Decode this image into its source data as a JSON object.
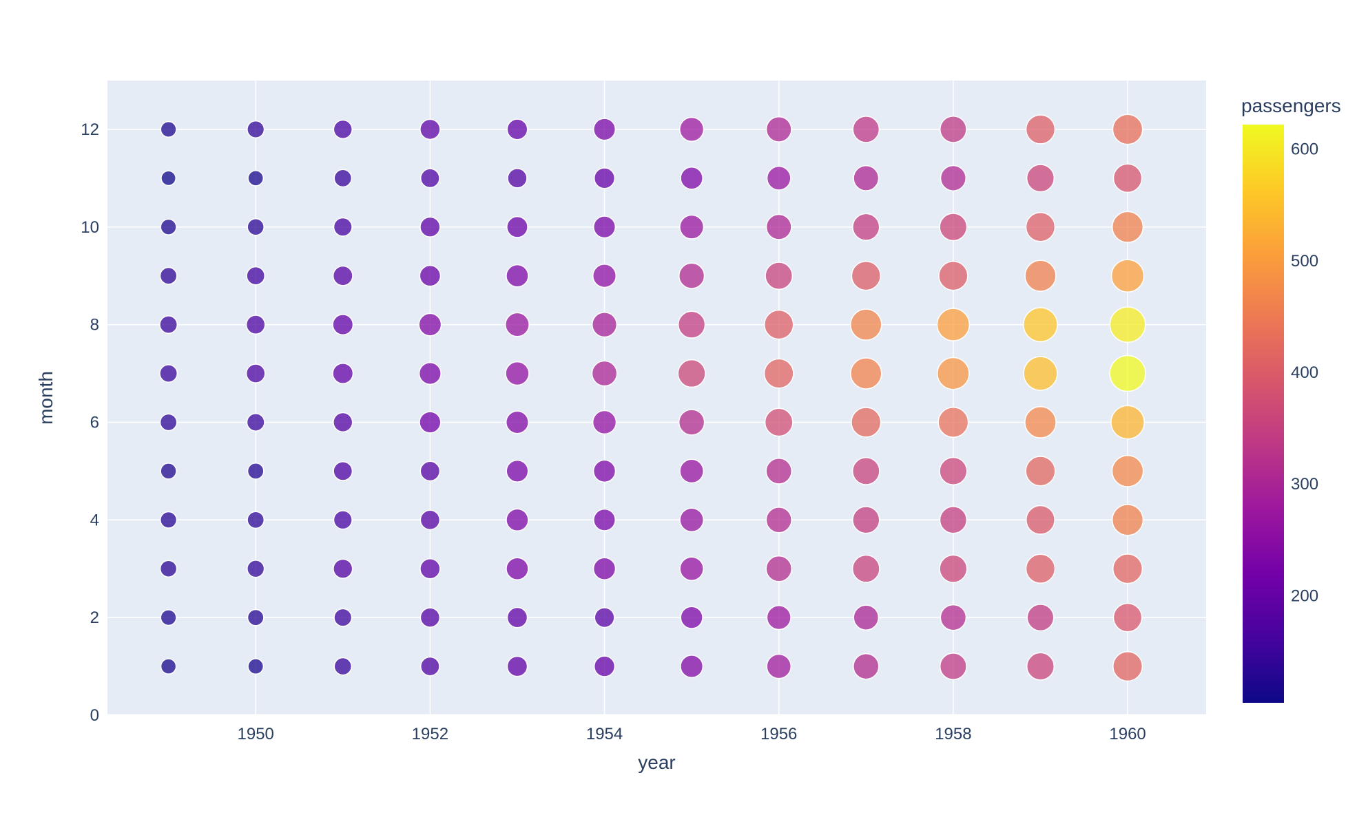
{
  "chart_data": {
    "type": "scatter",
    "subtype": "bubble",
    "xlabel": "year",
    "ylabel": "month",
    "colorbar_title": "passengers",
    "xlim": [
      1948.3,
      1960.9
    ],
    "ylim": [
      0,
      13
    ],
    "x_ticks": [
      1950,
      1952,
      1954,
      1956,
      1958,
      1960
    ],
    "y_ticks": [
      0,
      2,
      4,
      6,
      8,
      10,
      12
    ],
    "colorbar_ticks": [
      200,
      300,
      400,
      500,
      600
    ],
    "color_range": [
      104,
      622
    ],
    "colorscale": [
      "#0d0887",
      "#46039f",
      "#7201a8",
      "#9c179e",
      "#bd3786",
      "#d8576b",
      "#ed7953",
      "#fb9f3a",
      "#fdca26",
      "#f0f921"
    ],
    "plot_bgcolor": "#e5ecf6",
    "grid": true,
    "years": [
      1949,
      1950,
      1951,
      1952,
      1953,
      1954,
      1955,
      1956,
      1957,
      1958,
      1959,
      1960
    ],
    "months": [
      1,
      2,
      3,
      4,
      5,
      6,
      7,
      8,
      9,
      10,
      11,
      12
    ],
    "passengers": [
      [
        112,
        118,
        132,
        129,
        121,
        135,
        148,
        148,
        136,
        119,
        104,
        118
      ],
      [
        115,
        126,
        141,
        135,
        125,
        149,
        170,
        170,
        158,
        133,
        114,
        140
      ],
      [
        145,
        150,
        178,
        163,
        172,
        178,
        199,
        199,
        184,
        162,
        146,
        166
      ],
      [
        171,
        180,
        193,
        181,
        183,
        218,
        230,
        242,
        209,
        191,
        172,
        194
      ],
      [
        196,
        196,
        236,
        235,
        229,
        243,
        264,
        272,
        237,
        211,
        180,
        201
      ],
      [
        204,
        188,
        235,
        227,
        234,
        264,
        302,
        293,
        259,
        229,
        203,
        229
      ],
      [
        242,
        233,
        267,
        269,
        270,
        315,
        364,
        347,
        312,
        274,
        237,
        278
      ],
      [
        284,
        277,
        317,
        313,
        318,
        374,
        413,
        405,
        355,
        306,
        271,
        306
      ],
      [
        315,
        301,
        356,
        348,
        355,
        422,
        465,
        467,
        404,
        347,
        305,
        336
      ],
      [
        340,
        318,
        362,
        348,
        363,
        435,
        491,
        505,
        404,
        359,
        310,
        337
      ],
      [
        360,
        342,
        406,
        396,
        420,
        472,
        548,
        559,
        463,
        407,
        362,
        405
      ],
      [
        417,
        391,
        419,
        461,
        472,
        535,
        622,
        606,
        508,
        461,
        390,
        432
      ]
    ]
  }
}
